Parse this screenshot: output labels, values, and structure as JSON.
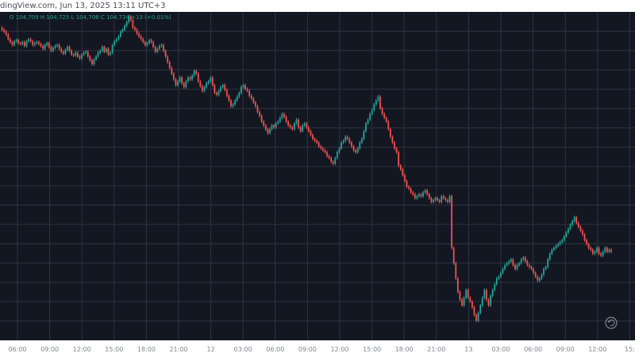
{
  "header": {
    "caption": "dingView.com, Jun 13, 2025 13:11 UTC+3"
  },
  "legend": {
    "ohlc_text": "O 104,709  H 104,725  L 104,708  C 104,734  +13 (+0.01%)"
  },
  "colors": {
    "background": "#131722",
    "grid": "#2f3340",
    "up": "#26a69a",
    "down": "#ef5350",
    "axis_text": "#7f8590",
    "legend_text": "#27a08f"
  },
  "icons": {
    "reset": "reset-icon"
  },
  "chart_data": {
    "type": "line",
    "title": "",
    "xlabel": "",
    "ylabel": "",
    "x_ticks": [
      "06:00",
      "09:00",
      "12:00",
      "15:00",
      "18:00",
      "21:00",
      "12",
      "03:00",
      "06:00",
      "09:00",
      "12:00",
      "15:00",
      "18:00",
      "21:00",
      "13",
      "03:00",
      "06:00",
      "09:00",
      "12:00",
      "15:"
    ],
    "ylim": [
      70,
      380
    ],
    "y_reversed": true,
    "grid": true,
    "series": [
      {
        "values": [
          70,
          72,
          74,
          77,
          82,
          85,
          88,
          84,
          83,
          86,
          87,
          85,
          89,
          84,
          82,
          84,
          88,
          86,
          85,
          87,
          89,
          92,
          88,
          86,
          90,
          94,
          91,
          89,
          88,
          92,
          95,
          97,
          93,
          90,
          94,
          98,
          99,
          96,
          100,
          102,
          98,
          96,
          95,
          100,
          104,
          108,
          103,
          100,
          96,
          94,
          90,
          95,
          92,
          98,
          96,
          88,
          84,
          82,
          79,
          74,
          72,
          68,
          64,
          58,
          62,
          70,
          72,
          76,
          79,
          82,
          85,
          88,
          86,
          83,
          85,
          90,
          95,
          92,
          89,
          88,
          94,
          100,
          106,
          112,
          118,
          124,
          130,
          126,
          122,
          128,
          132,
          126,
          122,
          124,
          120,
          115,
          118,
          126,
          131,
          136,
          132,
          128,
          126,
          122,
          130,
          138,
          140,
          136,
          132,
          130,
          135,
          141,
          146,
          152,
          150,
          146,
          142,
          138,
          132,
          130,
          134,
          136,
          141,
          144,
          148,
          152,
          158,
          162,
          168,
          172,
          176,
          180,
          176,
          172,
          174,
          170,
          168,
          164,
          160,
          163,
          168,
          172,
          174,
          176,
          170,
          166,
          174,
          178,
          172,
          170,
          174,
          178,
          182,
          186,
          188,
          190,
          194,
          196,
          198,
          200,
          204,
          206,
          210,
          212,
          206,
          200,
          196,
          190,
          188,
          184,
          186,
          190,
          194,
          198,
          200,
          196,
          190,
          186,
          178,
          170,
          166,
          160,
          156,
          150,
          146,
          142,
          154,
          160,
          164,
          168,
          176,
          184,
          190,
          196,
          200,
          214,
          218,
          224,
          230,
          236,
          238,
          242,
          244,
          248,
          246,
          244,
          246,
          242,
          240,
          244,
          248,
          252,
          250,
          248,
          250,
          252,
          246,
          248,
          250,
          252,
          246,
          300,
          316,
          332,
          346,
          354,
          360,
          352,
          344,
          352,
          356,
          362,
          370,
          376,
          368,
          360,
          352,
          344,
          354,
          360,
          350,
          344,
          338,
          332,
          330,
          326,
          322,
          318,
          316,
          314,
          312,
          318,
          322,
          318,
          316,
          312,
          310,
          314,
          318,
          320,
          322,
          326,
          330,
          334,
          332,
          328,
          322,
          320,
          312,
          306,
          302,
          300,
          298,
          296,
          294,
          292,
          288,
          284,
          280,
          276,
          272,
          268,
          274,
          278,
          282,
          286,
          292,
          296,
          300,
          302,
          306,
          304,
          300,
          306,
          308,
          304,
          300,
          304,
          302,
          304
        ],
        "color": "#26a69a"
      }
    ]
  }
}
